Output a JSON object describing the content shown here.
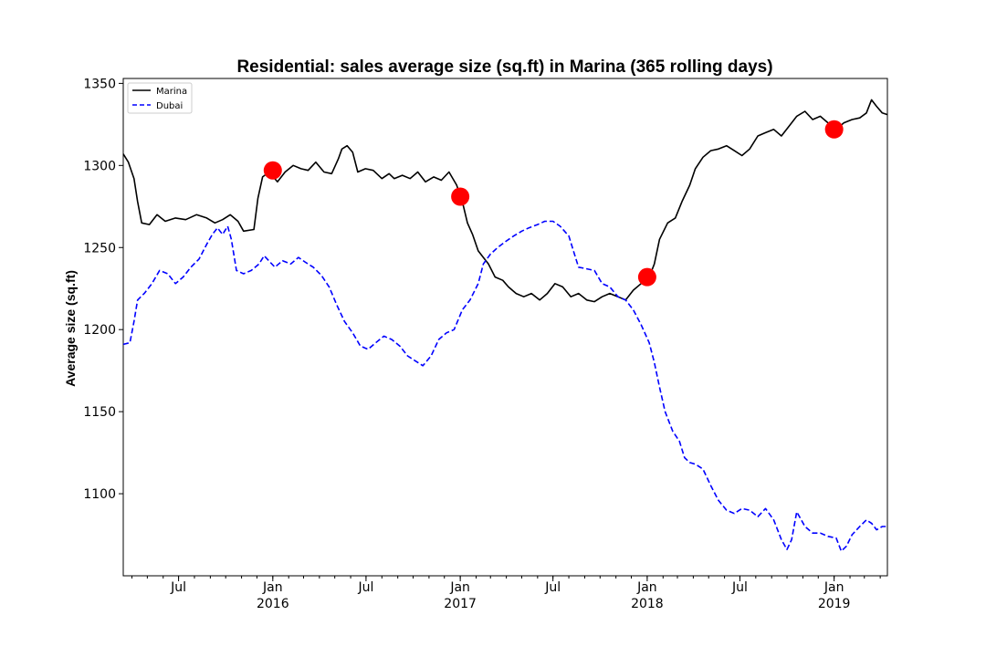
{
  "chart_data": {
    "type": "line",
    "title": "Residential: sales average size (sq.ft) in Marina (365 rolling days)",
    "xlabel": "",
    "ylabel": "Average size (sq.ft)",
    "ylim": [
      1050,
      1353
    ],
    "xlim": [
      "2015-03-15",
      "2019-04-15"
    ],
    "grid": false,
    "legend_position": "top-left",
    "y_ticks": [
      1100,
      1150,
      1200,
      1250,
      1300,
      1350
    ],
    "x_ticks": [
      {
        "date": "2015-07-01",
        "label": "Jul",
        "year": ""
      },
      {
        "date": "2016-01-01",
        "label": "Jan",
        "year": "2016"
      },
      {
        "date": "2016-07-01",
        "label": "Jul",
        "year": ""
      },
      {
        "date": "2017-01-01",
        "label": "Jan",
        "year": "2017"
      },
      {
        "date": "2017-07-01",
        "label": "Jul",
        "year": ""
      },
      {
        "date": "2018-01-01",
        "label": "Jan",
        "year": "2018"
      },
      {
        "date": "2018-07-01",
        "label": "Jul",
        "year": ""
      },
      {
        "date": "2019-01-01",
        "label": "Jan",
        "year": "2019"
      }
    ],
    "series": [
      {
        "name": "Marina",
        "color": "#000000",
        "style": "solid",
        "points": [
          [
            "2015-03-15",
            1307
          ],
          [
            "2015-03-25",
            1302
          ],
          [
            "2015-04-05",
            1292
          ],
          [
            "2015-04-12",
            1278
          ],
          [
            "2015-04-20",
            1265
          ],
          [
            "2015-05-05",
            1264
          ],
          [
            "2015-05-20",
            1270
          ],
          [
            "2015-06-05",
            1266
          ],
          [
            "2015-06-25",
            1268
          ],
          [
            "2015-07-15",
            1267
          ],
          [
            "2015-08-05",
            1270
          ],
          [
            "2015-08-25",
            1268
          ],
          [
            "2015-09-10",
            1265
          ],
          [
            "2015-09-25",
            1267
          ],
          [
            "2015-10-10",
            1270
          ],
          [
            "2015-10-25",
            1266
          ],
          [
            "2015-11-05",
            1260
          ],
          [
            "2015-11-25",
            1261
          ],
          [
            "2015-12-03",
            1280
          ],
          [
            "2015-12-12",
            1293
          ],
          [
            "2015-12-25",
            1296
          ],
          [
            "2016-01-10",
            1290
          ],
          [
            "2016-01-25",
            1296
          ],
          [
            "2016-02-10",
            1300
          ],
          [
            "2016-02-25",
            1298
          ],
          [
            "2016-03-10",
            1297
          ],
          [
            "2016-03-25",
            1302
          ],
          [
            "2016-04-10",
            1296
          ],
          [
            "2016-04-25",
            1295
          ],
          [
            "2016-05-08",
            1304
          ],
          [
            "2016-05-15",
            1310
          ],
          [
            "2016-05-25",
            1312
          ],
          [
            "2016-06-05",
            1308
          ],
          [
            "2016-06-15",
            1296
          ],
          [
            "2016-06-30",
            1298
          ],
          [
            "2016-07-15",
            1297
          ],
          [
            "2016-08-01",
            1292
          ],
          [
            "2016-08-15",
            1295
          ],
          [
            "2016-08-25",
            1292
          ],
          [
            "2016-09-10",
            1294
          ],
          [
            "2016-09-25",
            1292
          ],
          [
            "2016-10-10",
            1296
          ],
          [
            "2016-10-25",
            1290
          ],
          [
            "2016-11-10",
            1293
          ],
          [
            "2016-11-25",
            1291
          ],
          [
            "2016-12-10",
            1296
          ],
          [
            "2016-12-25",
            1288
          ],
          [
            "2017-01-05",
            1278
          ],
          [
            "2017-01-15",
            1265
          ],
          [
            "2017-01-25",
            1258
          ],
          [
            "2017-02-05",
            1248
          ],
          [
            "2017-02-15",
            1244
          ],
          [
            "2017-02-25",
            1240
          ],
          [
            "2017-03-10",
            1232
          ],
          [
            "2017-03-25",
            1230
          ],
          [
            "2017-04-05",
            1226
          ],
          [
            "2017-04-20",
            1222
          ],
          [
            "2017-05-05",
            1220
          ],
          [
            "2017-05-20",
            1222
          ],
          [
            "2017-06-05",
            1218
          ],
          [
            "2017-06-20",
            1222
          ],
          [
            "2017-07-05",
            1228
          ],
          [
            "2017-07-20",
            1226
          ],
          [
            "2017-08-05",
            1220
          ],
          [
            "2017-08-20",
            1222
          ],
          [
            "2017-09-05",
            1218
          ],
          [
            "2017-09-20",
            1217
          ],
          [
            "2017-10-05",
            1220
          ],
          [
            "2017-10-20",
            1222
          ],
          [
            "2017-11-05",
            1220
          ],
          [
            "2017-11-20",
            1218
          ],
          [
            "2017-12-05",
            1224
          ],
          [
            "2017-12-20",
            1228
          ],
          [
            "2018-01-05",
            1232
          ],
          [
            "2018-01-15",
            1240
          ],
          [
            "2018-01-25",
            1255
          ],
          [
            "2018-02-10",
            1265
          ],
          [
            "2018-02-25",
            1268
          ],
          [
            "2018-03-10",
            1278
          ],
          [
            "2018-03-25",
            1288
          ],
          [
            "2018-04-05",
            1298
          ],
          [
            "2018-04-20",
            1305
          ],
          [
            "2018-05-05",
            1309
          ],
          [
            "2018-05-20",
            1310
          ],
          [
            "2018-06-05",
            1312
          ],
          [
            "2018-06-20",
            1309
          ],
          [
            "2018-07-05",
            1306
          ],
          [
            "2018-07-20",
            1310
          ],
          [
            "2018-08-05",
            1318
          ],
          [
            "2018-08-20",
            1320
          ],
          [
            "2018-09-05",
            1322
          ],
          [
            "2018-09-20",
            1318
          ],
          [
            "2018-10-05",
            1324
          ],
          [
            "2018-10-20",
            1330
          ],
          [
            "2018-11-05",
            1333
          ],
          [
            "2018-11-20",
            1328
          ],
          [
            "2018-12-05",
            1330
          ],
          [
            "2018-12-20",
            1326
          ],
          [
            "2019-01-05",
            1322
          ],
          [
            "2019-01-20",
            1326
          ],
          [
            "2019-02-05",
            1328
          ],
          [
            "2019-02-20",
            1329
          ],
          [
            "2019-03-05",
            1332
          ],
          [
            "2019-03-15",
            1340
          ],
          [
            "2019-03-25",
            1336
          ],
          [
            "2019-04-05",
            1332
          ],
          [
            "2019-04-15",
            1331
          ]
        ]
      },
      {
        "name": "Dubai",
        "color": "#0000ff",
        "style": "dashed",
        "points": [
          [
            "2015-03-15",
            1191
          ],
          [
            "2015-03-28",
            1192
          ],
          [
            "2015-04-05",
            1205
          ],
          [
            "2015-04-12",
            1218
          ],
          [
            "2015-04-25",
            1222
          ],
          [
            "2015-05-10",
            1228
          ],
          [
            "2015-05-25",
            1236
          ],
          [
            "2015-06-10",
            1234
          ],
          [
            "2015-06-25",
            1228
          ],
          [
            "2015-07-10",
            1232
          ],
          [
            "2015-07-25",
            1238
          ],
          [
            "2015-08-10",
            1243
          ],
          [
            "2015-08-25",
            1252
          ],
          [
            "2015-09-05",
            1258
          ],
          [
            "2015-09-15",
            1262
          ],
          [
            "2015-09-25",
            1258
          ],
          [
            "2015-10-05",
            1263
          ],
          [
            "2015-10-12",
            1255
          ],
          [
            "2015-10-22",
            1236
          ],
          [
            "2015-11-05",
            1234
          ],
          [
            "2015-11-20",
            1236
          ],
          [
            "2015-12-05",
            1240
          ],
          [
            "2015-12-15",
            1245
          ],
          [
            "2016-01-05",
            1238
          ],
          [
            "2016-01-20",
            1242
          ],
          [
            "2016-02-05",
            1240
          ],
          [
            "2016-02-20",
            1244
          ],
          [
            "2016-03-05",
            1241
          ],
          [
            "2016-03-20",
            1238
          ],
          [
            "2016-04-05",
            1233
          ],
          [
            "2016-04-20",
            1226
          ],
          [
            "2016-05-05",
            1215
          ],
          [
            "2016-05-20",
            1205
          ],
          [
            "2016-06-05",
            1198
          ],
          [
            "2016-06-20",
            1190
          ],
          [
            "2016-07-05",
            1188
          ],
          [
            "2016-07-20",
            1192
          ],
          [
            "2016-08-05",
            1196
          ],
          [
            "2016-08-20",
            1194
          ],
          [
            "2016-09-05",
            1190
          ],
          [
            "2016-09-20",
            1184
          ],
          [
            "2016-10-05",
            1181
          ],
          [
            "2016-10-20",
            1178
          ],
          [
            "2016-11-05",
            1184
          ],
          [
            "2016-11-20",
            1194
          ],
          [
            "2016-12-05",
            1198
          ],
          [
            "2016-12-20",
            1200
          ],
          [
            "2017-01-05",
            1212
          ],
          [
            "2017-01-20",
            1218
          ],
          [
            "2017-02-05",
            1228
          ],
          [
            "2017-02-15",
            1240
          ],
          [
            "2017-03-01",
            1246
          ],
          [
            "2017-03-15",
            1250
          ],
          [
            "2017-04-01",
            1254
          ],
          [
            "2017-04-15",
            1257
          ],
          [
            "2017-05-01",
            1260
          ],
          [
            "2017-05-15",
            1262
          ],
          [
            "2017-06-01",
            1264
          ],
          [
            "2017-06-15",
            1266
          ],
          [
            "2017-07-01",
            1266
          ],
          [
            "2017-07-15",
            1263
          ],
          [
            "2017-08-01",
            1257
          ],
          [
            "2017-08-10",
            1248
          ],
          [
            "2017-08-20",
            1238
          ],
          [
            "2017-09-05",
            1237
          ],
          [
            "2017-09-20",
            1236
          ],
          [
            "2017-10-05",
            1228
          ],
          [
            "2017-10-20",
            1226
          ],
          [
            "2017-11-05",
            1220
          ],
          [
            "2017-11-20",
            1218
          ],
          [
            "2017-12-05",
            1212
          ],
          [
            "2017-12-20",
            1203
          ],
          [
            "2018-01-05",
            1192
          ],
          [
            "2018-01-15",
            1180
          ],
          [
            "2018-01-25",
            1165
          ],
          [
            "2018-02-05",
            1150
          ],
          [
            "2018-02-20",
            1138
          ],
          [
            "2018-03-05",
            1132
          ],
          [
            "2018-03-15",
            1122
          ],
          [
            "2018-03-25",
            1119
          ],
          [
            "2018-04-05",
            1118
          ],
          [
            "2018-04-20",
            1115
          ],
          [
            "2018-05-05",
            1105
          ],
          [
            "2018-05-20",
            1096
          ],
          [
            "2018-06-05",
            1090
          ],
          [
            "2018-06-20",
            1088
          ],
          [
            "2018-07-05",
            1091
          ],
          [
            "2018-07-20",
            1090
          ],
          [
            "2018-08-05",
            1086
          ],
          [
            "2018-08-20",
            1091
          ],
          [
            "2018-09-05",
            1084
          ],
          [
            "2018-09-20",
            1072
          ],
          [
            "2018-10-01",
            1066
          ],
          [
            "2018-10-10",
            1072
          ],
          [
            "2018-10-20",
            1089
          ],
          [
            "2018-11-05",
            1080
          ],
          [
            "2018-11-20",
            1076
          ],
          [
            "2018-12-05",
            1076
          ],
          [
            "2018-12-20",
            1074
          ],
          [
            "2019-01-05",
            1073
          ],
          [
            "2019-01-15",
            1065
          ],
          [
            "2019-01-25",
            1068
          ],
          [
            "2019-02-05",
            1075
          ],
          [
            "2019-02-20",
            1080
          ],
          [
            "2019-03-05",
            1084
          ],
          [
            "2019-03-15",
            1082
          ],
          [
            "2019-03-25",
            1078
          ],
          [
            "2019-04-05",
            1080
          ],
          [
            "2019-04-15",
            1080
          ]
        ]
      }
    ],
    "markers": [
      {
        "date": "2016-01-01",
        "value": 1297,
        "color": "#ff0000"
      },
      {
        "date": "2017-01-01",
        "value": 1281,
        "color": "#ff0000"
      },
      {
        "date": "2018-01-01",
        "value": 1232,
        "color": "#ff0000"
      },
      {
        "date": "2019-01-01",
        "value": 1322,
        "color": "#ff0000"
      }
    ]
  }
}
